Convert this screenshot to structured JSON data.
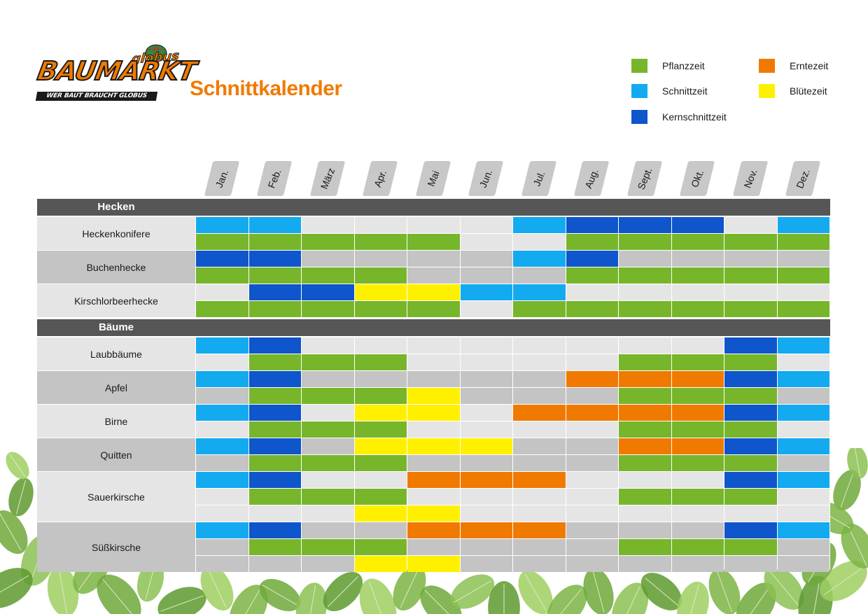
{
  "logo": {
    "wordmark": "BAUMARKT",
    "brand": "globus",
    "tagline": "WER BAUT BRAUCHT GLOBUS"
  },
  "title": "Schnittkalender",
  "colors": {
    "P": "#77b52b",
    "S": "#13aaf0",
    "K": "#0f55cc",
    "E": "#f07a00",
    "B": "#fff000",
    "light": "#e6e5e6",
    "dark": "#c4c4c4",
    "header": "#565656",
    "accent": "#f07a00"
  },
  "legend": [
    {
      "key": "P",
      "label": "Pflanzzeit"
    },
    {
      "key": "S",
      "label": "Schnittzeit"
    },
    {
      "key": "K",
      "label": "Kernschnittzeit"
    },
    {
      "key": "E",
      "label": "Erntezeit"
    },
    {
      "key": "B",
      "label": "Blütezeit"
    }
  ],
  "months": [
    "Jan.",
    "Feb.",
    "März",
    "Apr.",
    "Mai",
    "Jun.",
    "Jul.",
    "Aug.",
    "Sept.",
    "Okt.",
    "Nov.",
    "Dez."
  ],
  "sections": [
    {
      "title": "Hecken",
      "plants": [
        {
          "name": "Heckenkonifere",
          "shade": "light",
          "rows": [
            [
              "S",
              "S",
              "",
              "",
              "",
              "",
              "S",
              "K",
              "K",
              "K",
              "",
              "S"
            ],
            [
              "P",
              "P",
              "P",
              "P",
              "P",
              "",
              "",
              "P",
              "P",
              "P",
              "P",
              "P"
            ]
          ]
        },
        {
          "name": "Buchenhecke",
          "shade": "dark",
          "rows": [
            [
              "K",
              "K",
              "",
              "",
              "",
              "",
              "S",
              "K",
              "",
              "",
              "",
              ""
            ],
            [
              "P",
              "P",
              "P",
              "P",
              "",
              "",
              "",
              "P",
              "P",
              "P",
              "P",
              "P"
            ]
          ]
        },
        {
          "name": "Kirschlorbeerhecke",
          "shade": "light",
          "rows": [
            [
              "",
              "K",
              "K",
              "B",
              "B",
              "S",
              "S",
              "",
              "",
              "",
              "",
              ""
            ],
            [
              "P",
              "P",
              "P",
              "P",
              "P",
              "",
              "P",
              "P",
              "P",
              "P",
              "P",
              "P"
            ]
          ]
        }
      ]
    },
    {
      "title": "Bäume",
      "plants": [
        {
          "name": "Laubbäume",
          "shade": "light",
          "rows": [
            [
              "S",
              "K",
              "",
              "",
              "",
              "",
              "",
              "",
              "",
              "",
              "K",
              "S"
            ],
            [
              "",
              "P",
              "P",
              "P",
              "",
              "",
              "",
              "",
              "P",
              "P",
              "P",
              ""
            ]
          ]
        },
        {
          "name": "Apfel",
          "shade": "dark",
          "rows": [
            [
              "S",
              "K",
              "",
              "",
              "",
              "",
              "",
              "E",
              "E",
              "E",
              "K",
              "S"
            ],
            [
              "",
              "P",
              "P",
              "P",
              "B",
              "",
              "",
              "",
              "P",
              "P",
              "P",
              ""
            ]
          ]
        },
        {
          "name": "Birne",
          "shade": "light",
          "rows": [
            [
              "S",
              "K",
              "",
              "B",
              "B",
              "",
              "E",
              "E",
              "E",
              "E",
              "K",
              "S"
            ],
            [
              "",
              "P",
              "P",
              "P",
              "",
              "",
              "",
              "",
              "P",
              "P",
              "P",
              ""
            ]
          ]
        },
        {
          "name": "Quitten",
          "shade": "dark",
          "rows": [
            [
              "S",
              "K",
              "",
              "B",
              "B",
              "B",
              "",
              "",
              "E",
              "E",
              "K",
              "S"
            ],
            [
              "",
              "P",
              "P",
              "P",
              "",
              "",
              "",
              "",
              "P",
              "P",
              "P",
              ""
            ]
          ]
        },
        {
          "name": "Sauerkirsche",
          "shade": "light",
          "rows": [
            [
              "S",
              "K",
              "",
              "",
              "E",
              "E",
              "E",
              "",
              "",
              "",
              "K",
              "S"
            ],
            [
              "",
              "P",
              "P",
              "P",
              "",
              "",
              "",
              "",
              "P",
              "P",
              "P",
              ""
            ],
            [
              "",
              "",
              "",
              "B",
              "B",
              "",
              "",
              "",
              "",
              "",
              "",
              ""
            ]
          ]
        },
        {
          "name": "Süßkirsche",
          "shade": "dark",
          "rows": [
            [
              "S",
              "K",
              "",
              "",
              "E",
              "E",
              "E",
              "",
              "",
              "",
              "K",
              "S"
            ],
            [
              "",
              "P",
              "P",
              "P",
              "",
              "",
              "",
              "",
              "P",
              "P",
              "P",
              ""
            ],
            [
              "",
              "",
              "",
              "B",
              "B",
              "",
              "",
              "",
              "",
              "",
              "",
              ""
            ]
          ]
        }
      ]
    }
  ]
}
